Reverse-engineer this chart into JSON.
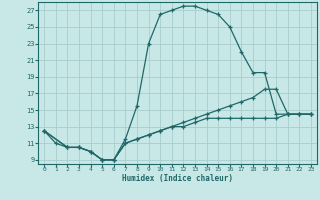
{
  "xlabel": "Humidex (Indice chaleur)",
  "bg_color": "#c8e8e8",
  "grid_color": "#a8cccc",
  "line_color": "#206868",
  "xlim": [
    -0.5,
    23.5
  ],
  "ylim": [
    8.5,
    28
  ],
  "xticks": [
    0,
    1,
    2,
    3,
    4,
    5,
    6,
    7,
    8,
    9,
    10,
    11,
    12,
    13,
    14,
    15,
    16,
    17,
    18,
    19,
    20,
    21,
    22,
    23
  ],
  "yticks": [
    9,
    11,
    13,
    15,
    17,
    19,
    21,
    23,
    25,
    27
  ],
  "lines": [
    {
      "x": [
        0,
        1,
        2,
        3,
        4,
        5,
        6,
        7,
        8,
        9,
        10,
        11,
        12,
        13,
        14,
        15,
        16,
        17,
        18,
        19,
        20,
        21,
        22,
        23
      ],
      "y": [
        12.5,
        11,
        10.5,
        10.5,
        10,
        9,
        9,
        11.5,
        15.5,
        23,
        26.5,
        27,
        27.5,
        27.5,
        27,
        26.5,
        25,
        22,
        19.5,
        19.5,
        14.5,
        14.5,
        14.5,
        14.5
      ]
    },
    {
      "x": [
        0,
        2,
        3,
        4,
        5,
        6,
        7,
        8,
        9,
        10,
        11,
        12,
        13,
        14,
        15,
        16,
        17,
        18,
        19,
        20,
        21,
        22,
        23
      ],
      "y": [
        12.5,
        10.5,
        10.5,
        10,
        9,
        9,
        11,
        11.5,
        12,
        12.5,
        13,
        13.5,
        14,
        14.5,
        15,
        15.5,
        16,
        16.5,
        17.5,
        17.5,
        14.5,
        14.5,
        14.5
      ]
    },
    {
      "x": [
        0,
        2,
        3,
        4,
        5,
        6,
        7,
        8,
        9,
        10,
        11,
        12,
        13,
        14,
        15,
        16,
        17,
        18,
        19,
        20,
        21,
        22,
        23
      ],
      "y": [
        12.5,
        10.5,
        10.5,
        10,
        9,
        9,
        11,
        11.5,
        12,
        12.5,
        13,
        13,
        13.5,
        14,
        14,
        14,
        14,
        14,
        14,
        14,
        14.5,
        14.5,
        14.5
      ]
    }
  ]
}
